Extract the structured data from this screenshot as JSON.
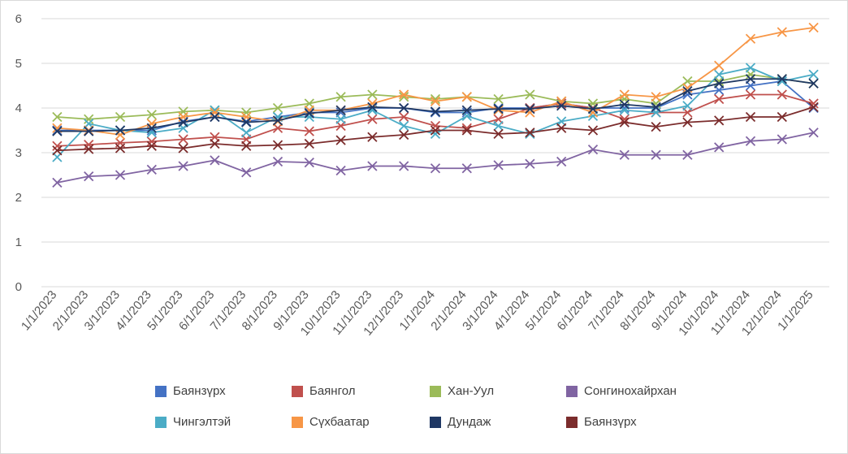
{
  "chart_data": {
    "type": "line",
    "title": "",
    "xlabel": "",
    "ylabel": "",
    "ylim": [
      0,
      6
    ],
    "yticks": [
      "0",
      "1",
      "2",
      "3",
      "4",
      "5",
      "6"
    ],
    "grid": "horizontal",
    "legend_position": "bottom",
    "x": [
      "1/1/2023",
      "2/1/2023",
      "3/1/2023",
      "4/1/2023",
      "5/1/2023",
      "6/1/2023",
      "7/1/2023",
      "8/1/2023",
      "9/1/2023",
      "10/1/2023",
      "11/1/2023",
      "12/1/2023",
      "1/1/2024",
      "2/1/2024",
      "3/1/2024",
      "4/1/2024",
      "5/1/2024",
      "6/1/2024",
      "7/1/2024",
      "8/1/2024",
      "9/1/2024",
      "10/1/2024",
      "11/1/2024",
      "12/1/2024",
      "1/1/2025"
    ],
    "series": [
      {
        "name": "Баянзүрх",
        "color": "#4472C4",
        "values": [
          3.5,
          3.5,
          3.5,
          3.5,
          3.7,
          3.8,
          3.7,
          3.8,
          3.9,
          3.9,
          4.0,
          4.0,
          3.9,
          3.9,
          4.0,
          4.0,
          4.1,
          4.0,
          4.0,
          4.0,
          4.3,
          4.4,
          4.5,
          4.6,
          4.0
        ]
      },
      {
        "name": "Баянгол",
        "color": "#C0504D",
        "values": [
          3.15,
          3.18,
          3.22,
          3.25,
          3.3,
          3.35,
          3.3,
          3.55,
          3.48,
          3.6,
          3.75,
          3.8,
          3.6,
          3.55,
          3.75,
          4.0,
          4.1,
          4.0,
          3.75,
          3.9,
          3.9,
          4.2,
          4.3,
          4.3,
          4.1
        ]
      },
      {
        "name": "Хан-Уул",
        "color": "#9BBB59",
        "values": [
          3.8,
          3.75,
          3.8,
          3.85,
          3.92,
          3.95,
          3.9,
          4.0,
          4.1,
          4.25,
          4.3,
          4.25,
          4.2,
          4.25,
          4.2,
          4.3,
          4.15,
          4.1,
          4.2,
          4.1,
          4.6,
          4.6,
          4.75,
          4.65,
          4.55
        ]
      },
      {
        "name": "Сонгинохайрхан",
        "color": "#8064A2",
        "values": [
          2.33,
          2.47,
          2.5,
          2.62,
          2.7,
          2.83,
          2.56,
          2.8,
          2.78,
          2.6,
          2.7,
          2.7,
          2.65,
          2.65,
          2.72,
          2.75,
          2.8,
          3.07,
          2.95,
          2.95,
          2.95,
          3.12,
          3.26,
          3.3,
          3.45
        ]
      },
      {
        "name": "Чингэлтэй",
        "color": "#4BACC6",
        "values": [
          2.9,
          3.65,
          3.5,
          3.45,
          3.55,
          3.95,
          3.45,
          3.8,
          3.8,
          3.75,
          3.95,
          3.6,
          3.42,
          3.82,
          3.6,
          3.42,
          3.7,
          3.82,
          3.95,
          3.9,
          4.05,
          4.75,
          4.9,
          4.6,
          4.75
        ]
      },
      {
        "name": "Сүхбаатар",
        "color": "#F79646",
        "values": [
          3.55,
          3.5,
          3.4,
          3.65,
          3.8,
          3.9,
          3.8,
          3.7,
          3.95,
          3.95,
          4.1,
          4.3,
          4.15,
          4.25,
          3.95,
          3.9,
          4.15,
          3.9,
          4.3,
          4.25,
          4.45,
          4.95,
          5.55,
          5.7,
          5.8
        ]
      },
      {
        "name": "Дундаж",
        "color": "#1F3864",
        "values": [
          3.48,
          3.48,
          3.5,
          3.55,
          3.68,
          3.8,
          3.68,
          3.72,
          3.88,
          3.95,
          4.02,
          4.0,
          3.92,
          3.95,
          3.98,
          3.98,
          4.05,
          3.98,
          4.08,
          4.02,
          4.38,
          4.55,
          4.65,
          4.65,
          4.55
        ]
      },
      {
        "name": "Баянзүрх",
        "color": "#7B2C2C",
        "values": [
          3.05,
          3.08,
          3.1,
          3.15,
          3.1,
          3.2,
          3.15,
          3.17,
          3.2,
          3.28,
          3.35,
          3.4,
          3.5,
          3.5,
          3.42,
          3.45,
          3.55,
          3.5,
          3.68,
          3.58,
          3.68,
          3.72,
          3.8,
          3.8,
          4.02
        ]
      }
    ]
  }
}
